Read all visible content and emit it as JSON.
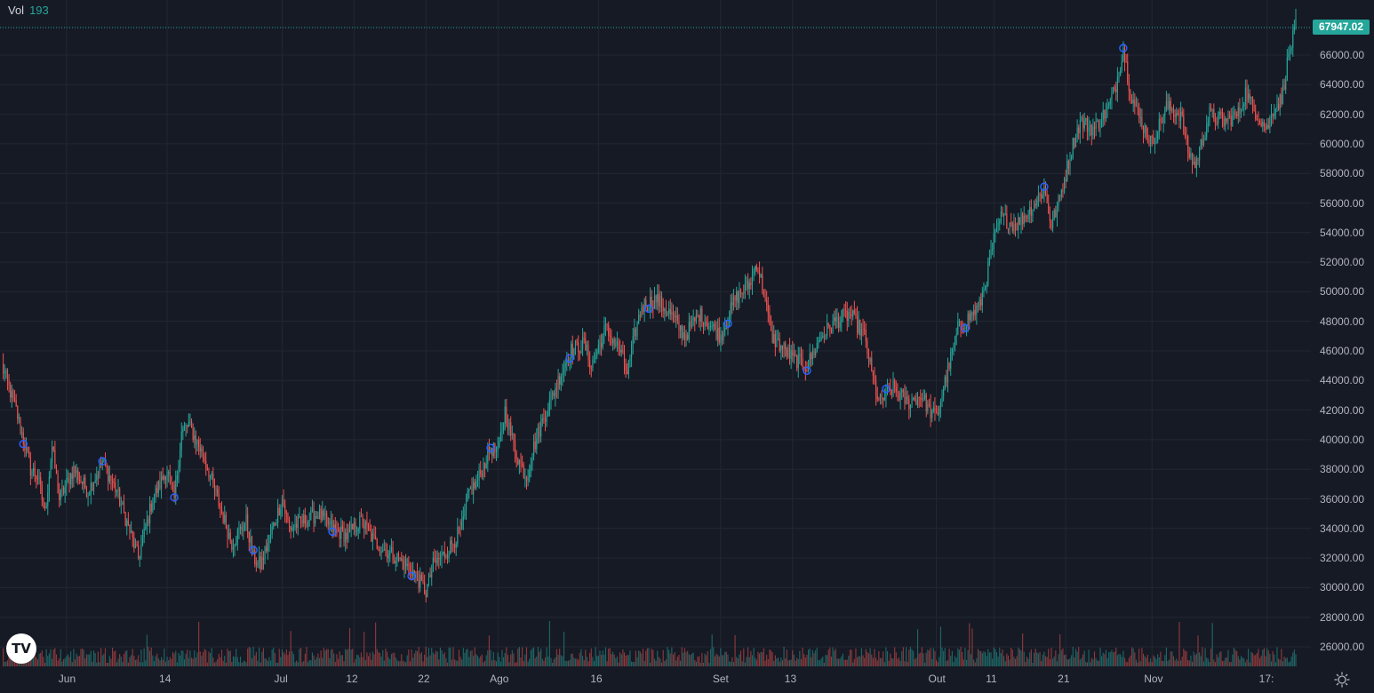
{
  "legend": {
    "label": "Vol",
    "value": "193"
  },
  "last_price": "67947.02",
  "logo_text": "TV",
  "settings_icon": "gear-icon",
  "colors": {
    "bg": "#161a25",
    "grid": "#232733",
    "up": "#26a69a",
    "down": "#ef5350",
    "marker": "#2962ff"
  },
  "chart_data": {
    "type": "candlestick",
    "y_ticks": [
      "26000.00",
      "28000.00",
      "30000.00",
      "32000.00",
      "34000.00",
      "36000.00",
      "38000.00",
      "40000.00",
      "42000.00",
      "44000.00",
      "46000.00",
      "48000.00",
      "50000.00",
      "52000.00",
      "54000.00",
      "56000.00",
      "58000.00",
      "60000.00",
      "62000.00",
      "64000.00",
      "66000.00"
    ],
    "ylim": [
      25000,
      70000
    ],
    "x_ticks": [
      "Jun",
      "14",
      "Jul",
      "12",
      "22",
      "Ago",
      "16",
      "Set",
      "13",
      "Out",
      "11",
      "21",
      "Nov",
      "17:"
    ],
    "x_tick_days": [
      9,
      23,
      39,
      49,
      59,
      69,
      83,
      100,
      110,
      130,
      138,
      148,
      160,
      176
    ],
    "day_range": [
      0,
      178
    ],
    "anchors": [
      [
        0,
        45000
      ],
      [
        2,
        42000
      ],
      [
        4,
        38000
      ],
      [
        5,
        37500
      ],
      [
        6,
        35000
      ],
      [
        7,
        39500
      ],
      [
        8,
        36000
      ],
      [
        10,
        38000
      ],
      [
        12,
        36500
      ],
      [
        14,
        38500
      ],
      [
        16,
        36500
      ],
      [
        18,
        33500
      ],
      [
        19,
        32000
      ],
      [
        21,
        36000
      ],
      [
        23,
        38000
      ],
      [
        24,
        36000
      ],
      [
        25,
        40500
      ],
      [
        26,
        41000
      ],
      [
        28,
        39000
      ],
      [
        30,
        36000
      ],
      [
        31,
        34500
      ],
      [
        32,
        33000
      ],
      [
        34,
        34500
      ],
      [
        35,
        32000
      ],
      [
        36,
        31500
      ],
      [
        38,
        34500
      ],
      [
        39,
        36000
      ],
      [
        40,
        34000
      ],
      [
        42,
        34500
      ],
      [
        44,
        35000
      ],
      [
        46,
        34000
      ],
      [
        48,
        33500
      ],
      [
        50,
        34500
      ],
      [
        52,
        33000
      ],
      [
        55,
        32000
      ],
      [
        57,
        31200
      ],
      [
        58,
        30500
      ],
      [
        59,
        29700
      ],
      [
        60,
        31500
      ],
      [
        62,
        32500
      ],
      [
        64,
        34000
      ],
      [
        65,
        36500
      ],
      [
        66,
        37000
      ],
      [
        68,
        39500
      ],
      [
        69,
        39000
      ],
      [
        70,
        42000
      ],
      [
        71,
        40000
      ],
      [
        72,
        38500
      ],
      [
        73,
        37500
      ],
      [
        74,
        39500
      ],
      [
        75,
        41000
      ],
      [
        77,
        43500
      ],
      [
        79,
        46000
      ],
      [
        81,
        46500
      ],
      [
        82,
        45000
      ],
      [
        84,
        47500
      ],
      [
        86,
        46000
      ],
      [
        87,
        44500
      ],
      [
        88,
        47000
      ],
      [
        89,
        49000
      ],
      [
        91,
        49500
      ],
      [
        93,
        48500
      ],
      [
        95,
        47000
      ],
      [
        97,
        48500
      ],
      [
        99,
        47500
      ],
      [
        100,
        47000
      ],
      [
        102,
        49500
      ],
      [
        104,
        50500
      ],
      [
        105,
        52000
      ],
      [
        106,
        50000
      ],
      [
        107,
        47000
      ],
      [
        108,
        46500
      ],
      [
        110,
        45500
      ],
      [
        112,
        45000
      ],
      [
        114,
        47000
      ],
      [
        116,
        48000
      ],
      [
        118,
        48500
      ],
      [
        120,
        47000
      ],
      [
        121,
        44500
      ],
      [
        122,
        42500
      ],
      [
        124,
        43500
      ],
      [
        126,
        42500
      ],
      [
        128,
        43000
      ],
      [
        129,
        42000
      ],
      [
        130,
        41500
      ],
      [
        131,
        43500
      ],
      [
        132,
        45500
      ],
      [
        133,
        47500
      ],
      [
        135,
        48500
      ],
      [
        136,
        49000
      ],
      [
        137,
        51000
      ],
      [
        138,
        53500
      ],
      [
        139,
        55000
      ],
      [
        141,
        54500
      ],
      [
        143,
        55500
      ],
      [
        145,
        57000
      ],
      [
        146,
        54500
      ],
      [
        147,
        56000
      ],
      [
        148,
        58000
      ],
      [
        149,
        60000
      ],
      [
        150,
        61500
      ],
      [
        152,
        61000
      ],
      [
        154,
        62500
      ],
      [
        155,
        64000
      ],
      [
        156,
        66500
      ],
      [
        157,
        63500
      ],
      [
        158,
        62000
      ],
      [
        159,
        61000
      ],
      [
        160,
        60000
      ],
      [
        162,
        62500
      ],
      [
        164,
        62000
      ],
      [
        165,
        59500
      ],
      [
        166,
        58500
      ],
      [
        168,
        62000
      ],
      [
        170,
        61500
      ],
      [
        172,
        62000
      ],
      [
        173,
        63500
      ],
      [
        174,
        62500
      ],
      [
        176,
        61000
      ],
      [
        177,
        62500
      ],
      [
        178,
        63000
      ],
      [
        179,
        66000
      ],
      [
        180,
        67947
      ]
    ],
    "markers_day": [
      3,
      14,
      24,
      35,
      46,
      57,
      68,
      79,
      90,
      101,
      112,
      123,
      134,
      145,
      156
    ]
  }
}
